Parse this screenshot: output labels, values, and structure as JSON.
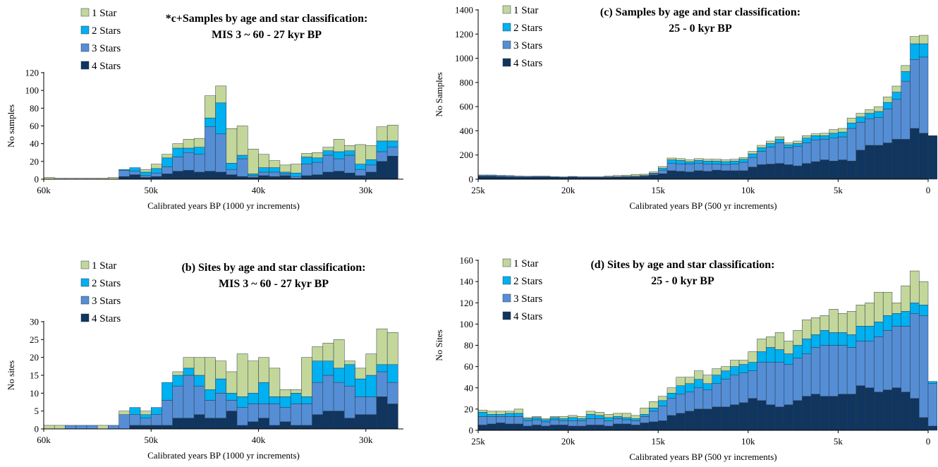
{
  "legend_labels": [
    "1 Star",
    "2 Stars",
    "3 Stars",
    "4 Stars"
  ],
  "colors": {
    "one_star": "#C4D79B",
    "two_stars": "#00B0F0",
    "three_stars": "#558ED5",
    "four_stars": "#10355F",
    "bar_edge": "#2a3a4a",
    "axis": "#000000"
  },
  "chart_data": [
    {
      "type": "bar",
      "stacked": true,
      "title": [
        "*c+Samples by age and star classification:",
        "MIS 3 ~ 60  - 27 kyr BP"
      ],
      "xlabel": "Calibrated years BP (1000 yr increments)",
      "ylabel": "No samples",
      "ylim": [
        0,
        120
      ],
      "yticks": [
        0,
        20,
        40,
        60,
        80,
        100,
        120
      ],
      "xlim": [
        60000,
        26500
      ],
      "xticks": [
        {
          "x": 60000,
          "label": "60k"
        },
        {
          "x": 50000,
          "label": "50k"
        },
        {
          "x": 40000,
          "label": "40k"
        },
        {
          "x": 30000,
          "label": "30k"
        }
      ],
      "bin_width_years": 1000,
      "legend_position": "top-left",
      "bins_start_years": [
        60000,
        59000,
        58000,
        57000,
        56000,
        55000,
        54000,
        53000,
        52000,
        51000,
        50000,
        49000,
        48000,
        47000,
        46000,
        45000,
        44000,
        43000,
        42000,
        41000,
        40000,
        39000,
        38000,
        37000,
        36000,
        35000,
        34000,
        33000,
        32000,
        31000,
        30000,
        29000,
        28000
      ],
      "series": [
        {
          "name": "4 Stars",
          "values": [
            0,
            0,
            0,
            0,
            0,
            0,
            0,
            3,
            5,
            2,
            3,
            6,
            9,
            10,
            8,
            9,
            8,
            5,
            3,
            2,
            4,
            3,
            4,
            1,
            4,
            5,
            8,
            9,
            7,
            4,
            8,
            20,
            26
          ]
        },
        {
          "name": "3 Stars",
          "values": [
            0,
            0,
            0,
            0,
            0,
            0,
            0,
            7,
            4,
            2,
            4,
            8,
            16,
            20,
            20,
            50,
            43,
            6,
            20,
            2,
            4,
            5,
            2,
            2,
            13,
            14,
            19,
            14,
            20,
            7,
            8,
            11,
            10
          ]
        },
        {
          "name": "2 Stars",
          "values": [
            0,
            0,
            0,
            0,
            0,
            0,
            0,
            1,
            4,
            4,
            5,
            10,
            10,
            5,
            8,
            10,
            35,
            7,
            4,
            2,
            5,
            5,
            2,
            4,
            8,
            5,
            5,
            8,
            5,
            6,
            6,
            12,
            7
          ]
        },
        {
          "name": "1 Star",
          "values": [
            2,
            1,
            1,
            1,
            1,
            1,
            2,
            0,
            0,
            3,
            5,
            4,
            5,
            10,
            10,
            25,
            19,
            39,
            33,
            28,
            15,
            8,
            8,
            10,
            4,
            6,
            4,
            14,
            6,
            22,
            16,
            16,
            18
          ]
        }
      ]
    },
    {
      "type": "bar",
      "stacked": true,
      "title": [
        "(b) Sites by age and star classification:",
        "MIS 3 ~ 60  - 27 kyr BP"
      ],
      "xlabel": "Calibrated years BP (1000 yr increments)",
      "ylabel": "No sites",
      "ylim": [
        0,
        30
      ],
      "yticks": [
        0,
        5,
        10,
        15,
        20,
        25,
        30
      ],
      "xlim": [
        60000,
        26500
      ],
      "xticks": [
        {
          "x": 60000,
          "label": "60k"
        },
        {
          "x": 50000,
          "label": "50k"
        },
        {
          "x": 40000,
          "label": "40k"
        },
        {
          "x": 30000,
          "label": "30k"
        }
      ],
      "bin_width_years": 1000,
      "legend_position": "top-left",
      "bins_start_years": [
        60000,
        59000,
        58000,
        57000,
        56000,
        55000,
        54000,
        53000,
        52000,
        51000,
        50000,
        49000,
        48000,
        47000,
        46000,
        45000,
        44000,
        43000,
        42000,
        41000,
        40000,
        39000,
        38000,
        37000,
        36000,
        35000,
        34000,
        33000,
        32000,
        31000,
        30000,
        29000,
        28000
      ],
      "series": [
        {
          "name": "4 Stars",
          "values": [
            0,
            0,
            0,
            0,
            0,
            0,
            0,
            0,
            1,
            1,
            1,
            1,
            3,
            3,
            4,
            3,
            3,
            5,
            1,
            2,
            3,
            1,
            2,
            1,
            1,
            4,
            5,
            5,
            3,
            4,
            4,
            9,
            7
          ]
        },
        {
          "name": "3 Stars",
          "values": [
            0,
            0,
            1,
            1,
            1,
            0,
            1,
            4,
            3,
            2,
            3,
            7,
            9,
            12,
            8,
            5,
            7,
            3,
            5,
            5,
            4,
            6,
            4,
            6,
            6,
            9,
            10,
            8,
            9,
            5,
            5,
            7,
            6
          ]
        },
        {
          "name": "2 Stars",
          "values": [
            0,
            0,
            0,
            0,
            0,
            0,
            0,
            0,
            2,
            1,
            2,
            5,
            3,
            2,
            3,
            3,
            4,
            2,
            3,
            3,
            6,
            2,
            3,
            3,
            2,
            6,
            4,
            4,
            6,
            5,
            6,
            2,
            5
          ]
        },
        {
          "name": "1 Star",
          "values": [
            1,
            1,
            0,
            0,
            0,
            1,
            0,
            1,
            0,
            1,
            0,
            0,
            1,
            3,
            5,
            9,
            5,
            6,
            12,
            9,
            7,
            8,
            2,
            1,
            11,
            4,
            5,
            8,
            1,
            3,
            6,
            10,
            9
          ]
        }
      ]
    },
    {
      "type": "bar",
      "stacked": true,
      "title": [
        "(c) Samples by age and star classification:",
        "25  - 0 kyr BP"
      ],
      "xlabel": "Calibrated years BP (500 yr increments)",
      "ylabel": "No Samples",
      "ylim": [
        0,
        1400
      ],
      "yticks": [
        0,
        200,
        400,
        600,
        800,
        1000,
        1200,
        1400
      ],
      "xlim": [
        25000,
        0
      ],
      "xticks": [
        {
          "x": 25000,
          "label": "25k"
        },
        {
          "x": 20000,
          "label": "20k"
        },
        {
          "x": 15000,
          "label": "15k"
        },
        {
          "x": 10000,
          "label": "10k"
        },
        {
          "x": 5000,
          "label": "5k"
        },
        {
          "x": 0,
          "label": "0"
        }
      ],
      "bin_width_years": 500,
      "legend_position": "top-left",
      "bins_start_years": [
        25000,
        24500,
        24000,
        23500,
        23000,
        22500,
        22000,
        21500,
        21000,
        20500,
        20000,
        19500,
        19000,
        18500,
        18000,
        17500,
        17000,
        16500,
        16000,
        15500,
        15000,
        14500,
        14000,
        13500,
        13000,
        12500,
        12000,
        11500,
        11000,
        10500,
        10000,
        9500,
        9000,
        8500,
        8000,
        7500,
        7000,
        6500,
        6000,
        5500,
        5000,
        4500,
        4000,
        3500,
        3000,
        2500,
        2000,
        1500,
        1000,
        500,
        0
      ],
      "series": [
        {
          "name": "4 Stars",
          "values": [
            25,
            25,
            22,
            20,
            18,
            18,
            20,
            20,
            16,
            15,
            18,
            15,
            15,
            15,
            15,
            16,
            18,
            20,
            25,
            35,
            45,
            70,
            65,
            60,
            70,
            65,
            75,
            70,
            70,
            70,
            100,
            120,
            125,
            130,
            120,
            110,
            130,
            145,
            160,
            150,
            160,
            150,
            240,
            280,
            280,
            300,
            330,
            330,
            420,
            380,
            360
          ]
        },
        {
          "name": "3 Stars",
          "values": [
            10,
            10,
            10,
            10,
            8,
            6,
            5,
            5,
            5,
            4,
            5,
            5,
            5,
            5,
            5,
            5,
            5,
            5,
            6,
            10,
            30,
            60,
            60,
            65,
            60,
            60,
            50,
            50,
            55,
            70,
            80,
            110,
            140,
            170,
            140,
            160,
            170,
            180,
            170,
            190,
            190,
            270,
            230,
            220,
            230,
            280,
            330,
            480,
            570,
            630,
            0
          ]
        },
        {
          "name": "2 Stars",
          "values": [
            0,
            0,
            0,
            0,
            0,
            0,
            0,
            0,
            0,
            0,
            0,
            0,
            0,
            0,
            0,
            0,
            0,
            0,
            0,
            5,
            15,
            30,
            30,
            20,
            25,
            25,
            25,
            25,
            25,
            25,
            30,
            30,
            30,
            30,
            25,
            25,
            40,
            35,
            30,
            40,
            40,
            45,
            45,
            45,
            50,
            55,
            60,
            80,
            130,
            110,
            0
          ]
        },
        {
          "name": "1 Star",
          "values": [
            0,
            0,
            0,
            0,
            0,
            0,
            0,
            0,
            0,
            0,
            0,
            0,
            0,
            0,
            5,
            10,
            10,
            15,
            10,
            10,
            15,
            15,
            15,
            15,
            15,
            15,
            15,
            15,
            15,
            15,
            20,
            20,
            20,
            20,
            15,
            20,
            20,
            15,
            20,
            30,
            30,
            40,
            30,
            30,
            40,
            45,
            50,
            50,
            60,
            70,
            0
          ]
        }
      ]
    },
    {
      "type": "bar",
      "stacked": true,
      "title": [
        "(d) Sites by age and star classification:",
        "25  - 0 kyr BP"
      ],
      "xlabel": "Calibrated years BP (500 yr increments)",
      "ylabel": "No Sites",
      "ylim": [
        0,
        160
      ],
      "yticks": [
        0,
        20,
        40,
        60,
        80,
        100,
        120,
        140,
        160
      ],
      "xlim": [
        25000,
        0
      ],
      "xticks": [
        {
          "x": 25000,
          "label": "25k"
        },
        {
          "x": 20000,
          "label": "20k"
        },
        {
          "x": 15000,
          "label": "15k"
        },
        {
          "x": 10000,
          "label": "10k"
        },
        {
          "x": 5000,
          "label": "5k"
        },
        {
          "x": 0,
          "label": "0"
        }
      ],
      "bin_width_years": 500,
      "legend_position": "top-left",
      "bins_start_years": [
        25000,
        24500,
        24000,
        23500,
        23000,
        22500,
        22000,
        21500,
        21000,
        20500,
        20000,
        19500,
        19000,
        18500,
        18000,
        17500,
        17000,
        16500,
        16000,
        15500,
        15000,
        14500,
        14000,
        13500,
        13000,
        12500,
        12000,
        11500,
        11000,
        10500,
        10000,
        9500,
        9000,
        8500,
        8000,
        7500,
        7000,
        6500,
        6000,
        5500,
        5000,
        4500,
        4000,
        3500,
        3000,
        2500,
        2000,
        1500,
        1000,
        500,
        0
      ],
      "series": [
        {
          "name": "4 Stars",
          "values": [
            5,
            6,
            7,
            6,
            6,
            4,
            5,
            4,
            5,
            5,
            4,
            4,
            5,
            5,
            4,
            6,
            6,
            5,
            7,
            8,
            9,
            14,
            16,
            18,
            20,
            20,
            22,
            22,
            24,
            26,
            30,
            28,
            24,
            22,
            24,
            28,
            32,
            34,
            32,
            32,
            34,
            34,
            42,
            40,
            36,
            38,
            40,
            36,
            30,
            12,
            4
          ]
        },
        {
          "name": "3 Stars",
          "values": [
            8,
            7,
            6,
            7,
            7,
            5,
            5,
            4,
            5,
            4,
            5,
            5,
            6,
            6,
            5,
            5,
            4,
            4,
            6,
            10,
            14,
            16,
            18,
            18,
            20,
            18,
            22,
            26,
            28,
            28,
            26,
            36,
            40,
            42,
            38,
            40,
            40,
            44,
            48,
            48,
            46,
            44,
            42,
            44,
            52,
            56,
            58,
            62,
            80,
            96,
            40
          ]
        },
        {
          "name": "2 Stars",
          "values": [
            4,
            2,
            2,
            3,
            3,
            2,
            2,
            2,
            2,
            2,
            3,
            2,
            4,
            3,
            3,
            2,
            2,
            2,
            2,
            3,
            5,
            5,
            8,
            8,
            8,
            6,
            8,
            8,
            8,
            8,
            8,
            10,
            14,
            12,
            10,
            12,
            14,
            12,
            14,
            12,
            12,
            12,
            14,
            14,
            14,
            14,
            12,
            14,
            10,
            10,
            2
          ]
        },
        {
          "name": "1 Star",
          "values": [
            2,
            3,
            3,
            2,
            4,
            1,
            1,
            1,
            1,
            2,
            2,
            2,
            3,
            3,
            3,
            3,
            4,
            3,
            6,
            6,
            4,
            5,
            8,
            6,
            8,
            8,
            6,
            4,
            6,
            4,
            10,
            12,
            10,
            16,
            12,
            14,
            18,
            16,
            14,
            22,
            18,
            22,
            20,
            22,
            28,
            22,
            10,
            24,
            30,
            22,
            0
          ]
        }
      ]
    }
  ]
}
